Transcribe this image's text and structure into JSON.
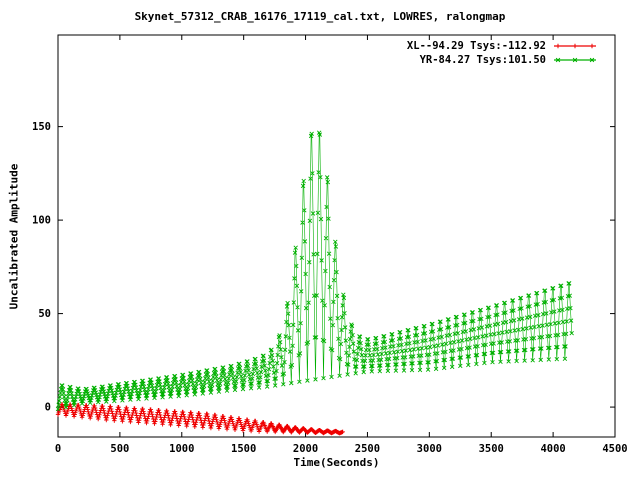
{
  "chart_data": {
    "type": "scatter",
    "title": "Skynet_57312_CRAB_16176_17119_cal.txt, LOWRES, ralongmap",
    "xlabel": "Time(Seconds)",
    "ylabel": "Uncalibrated Amplitude",
    "xlim": [
      0,
      4500
    ],
    "ylim": [
      -16,
      199
    ],
    "xticks": [
      0,
      500,
      1000,
      1500,
      2000,
      2500,
      3000,
      3500,
      4000,
      4500
    ],
    "yticks": [
      0,
      50,
      100,
      150
    ],
    "grid": false,
    "legend_position": "top-right-inside",
    "background": "#ffffff",
    "axis_color": "#000000",
    "series": [
      {
        "name": "XL--94.29 Tsys:-112.92",
        "color": "#ee0000",
        "marker": "plus",
        "x_range": [
          0,
          2300
        ],
        "sample_step": 5,
        "osc_period": 65,
        "envelope": [
          [
            0,
            -1,
            3
          ],
          [
            400,
            -3,
            4
          ],
          [
            800,
            -5,
            4
          ],
          [
            1200,
            -7,
            4
          ],
          [
            1600,
            -10,
            3
          ],
          [
            1900,
            -12,
            1.5
          ],
          [
            2100,
            -13,
            0.8
          ],
          [
            2300,
            -13.5,
            0.5
          ]
        ],
        "peak": null
      },
      {
        "name": "YR-84.27 Tsys:101.50",
        "color": "#00b000",
        "marker": "cross",
        "x_range": [
          0,
          4150
        ],
        "sample_step": 5,
        "osc_period": 65,
        "envelope": [
          [
            0,
            6,
            7
          ],
          [
            200,
            6,
            4
          ],
          [
            600,
            9,
            5
          ],
          [
            1000,
            12,
            6
          ],
          [
            1400,
            16,
            7
          ],
          [
            1700,
            20,
            9
          ],
          [
            2500,
            28,
            9
          ],
          [
            3000,
            33,
            13
          ],
          [
            3500,
            40,
            16
          ],
          [
            4150,
            48,
            22
          ]
        ],
        "peak": {
          "amplitude": 128,
          "center": 2080,
          "sigma": 130
        }
      }
    ]
  }
}
